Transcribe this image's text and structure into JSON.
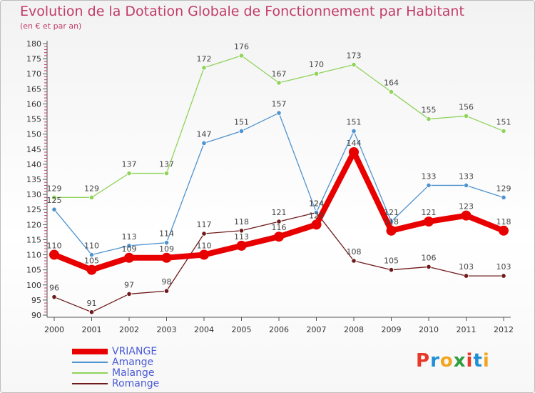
{
  "title": "Evolution de la Dotation Globale de Fonctionnement par Habitant",
  "subtitle": "(en € et par an)",
  "logo": {
    "text": "Proxiti",
    "letters": [
      "P",
      "r",
      "o",
      "x",
      "i",
      "t",
      "i"
    ],
    "colors": [
      "#e8382a",
      "#1f8fd6",
      "#f2a51f",
      "#2e9e3e",
      "#e8382a",
      "#1f8fd6",
      "#f2a51f"
    ]
  },
  "chart_data": {
    "type": "line",
    "title": "Evolution de la Dotation Globale de Fonctionnement par Habitant",
    "subtitle": "(en € et par an)",
    "x": [
      "2000",
      "2001",
      "2002",
      "2003",
      "2004",
      "2005",
      "2006",
      "2007",
      "2008",
      "2009",
      "2010",
      "2011",
      "2012"
    ],
    "ylim": [
      90,
      180
    ],
    "yticks": [
      "90",
      "95",
      "100",
      "105",
      "110",
      "115",
      "120",
      "125",
      "130",
      "135",
      "140",
      "145",
      "150",
      "155",
      "160",
      "165",
      "170",
      "175",
      "180"
    ],
    "grid": false,
    "legend_position": "bottom-left",
    "series": [
      {
        "name": "VRIANGE",
        "color": "#e80000",
        "values": [
          110,
          105,
          109,
          109,
          110,
          113,
          116,
          120,
          144,
          118,
          121,
          123,
          118
        ],
        "labels": [
          "110",
          "105",
          "109",
          "109",
          "110",
          "113",
          "116",
          "120",
          "144",
          "118",
          "121",
          "123",
          "118"
        ]
      },
      {
        "name": "Amange",
        "color": "#4f93cf",
        "values": [
          125,
          110,
          113,
          114,
          147,
          151,
          157,
          124,
          151,
          121,
          133,
          133,
          129
        ],
        "labels": [
          "125",
          "110",
          "113",
          "114",
          "147",
          "151",
          "157",
          "124",
          "151",
          "121",
          "133",
          "133",
          "129"
        ]
      },
      {
        "name": "Malange",
        "color": "#8fd35a",
        "values": [
          129,
          129,
          137,
          137,
          172,
          176,
          167,
          170,
          173,
          164,
          155,
          156,
          151
        ],
        "labels": [
          "129",
          "129",
          "137",
          "137",
          "172",
          "176",
          "167",
          "170",
          "173",
          "164",
          "155",
          "156",
          "151"
        ]
      },
      {
        "name": "Romange",
        "color": "#6e1a1a",
        "values": [
          96,
          91,
          97,
          98,
          117,
          118,
          121,
          124,
          108,
          105,
          106,
          103,
          103
        ],
        "labels": [
          "96",
          "91",
          "97",
          "98",
          "117",
          "118",
          "121",
          "124",
          "108",
          "105",
          "106",
          "103",
          "103"
        ]
      }
    ]
  }
}
